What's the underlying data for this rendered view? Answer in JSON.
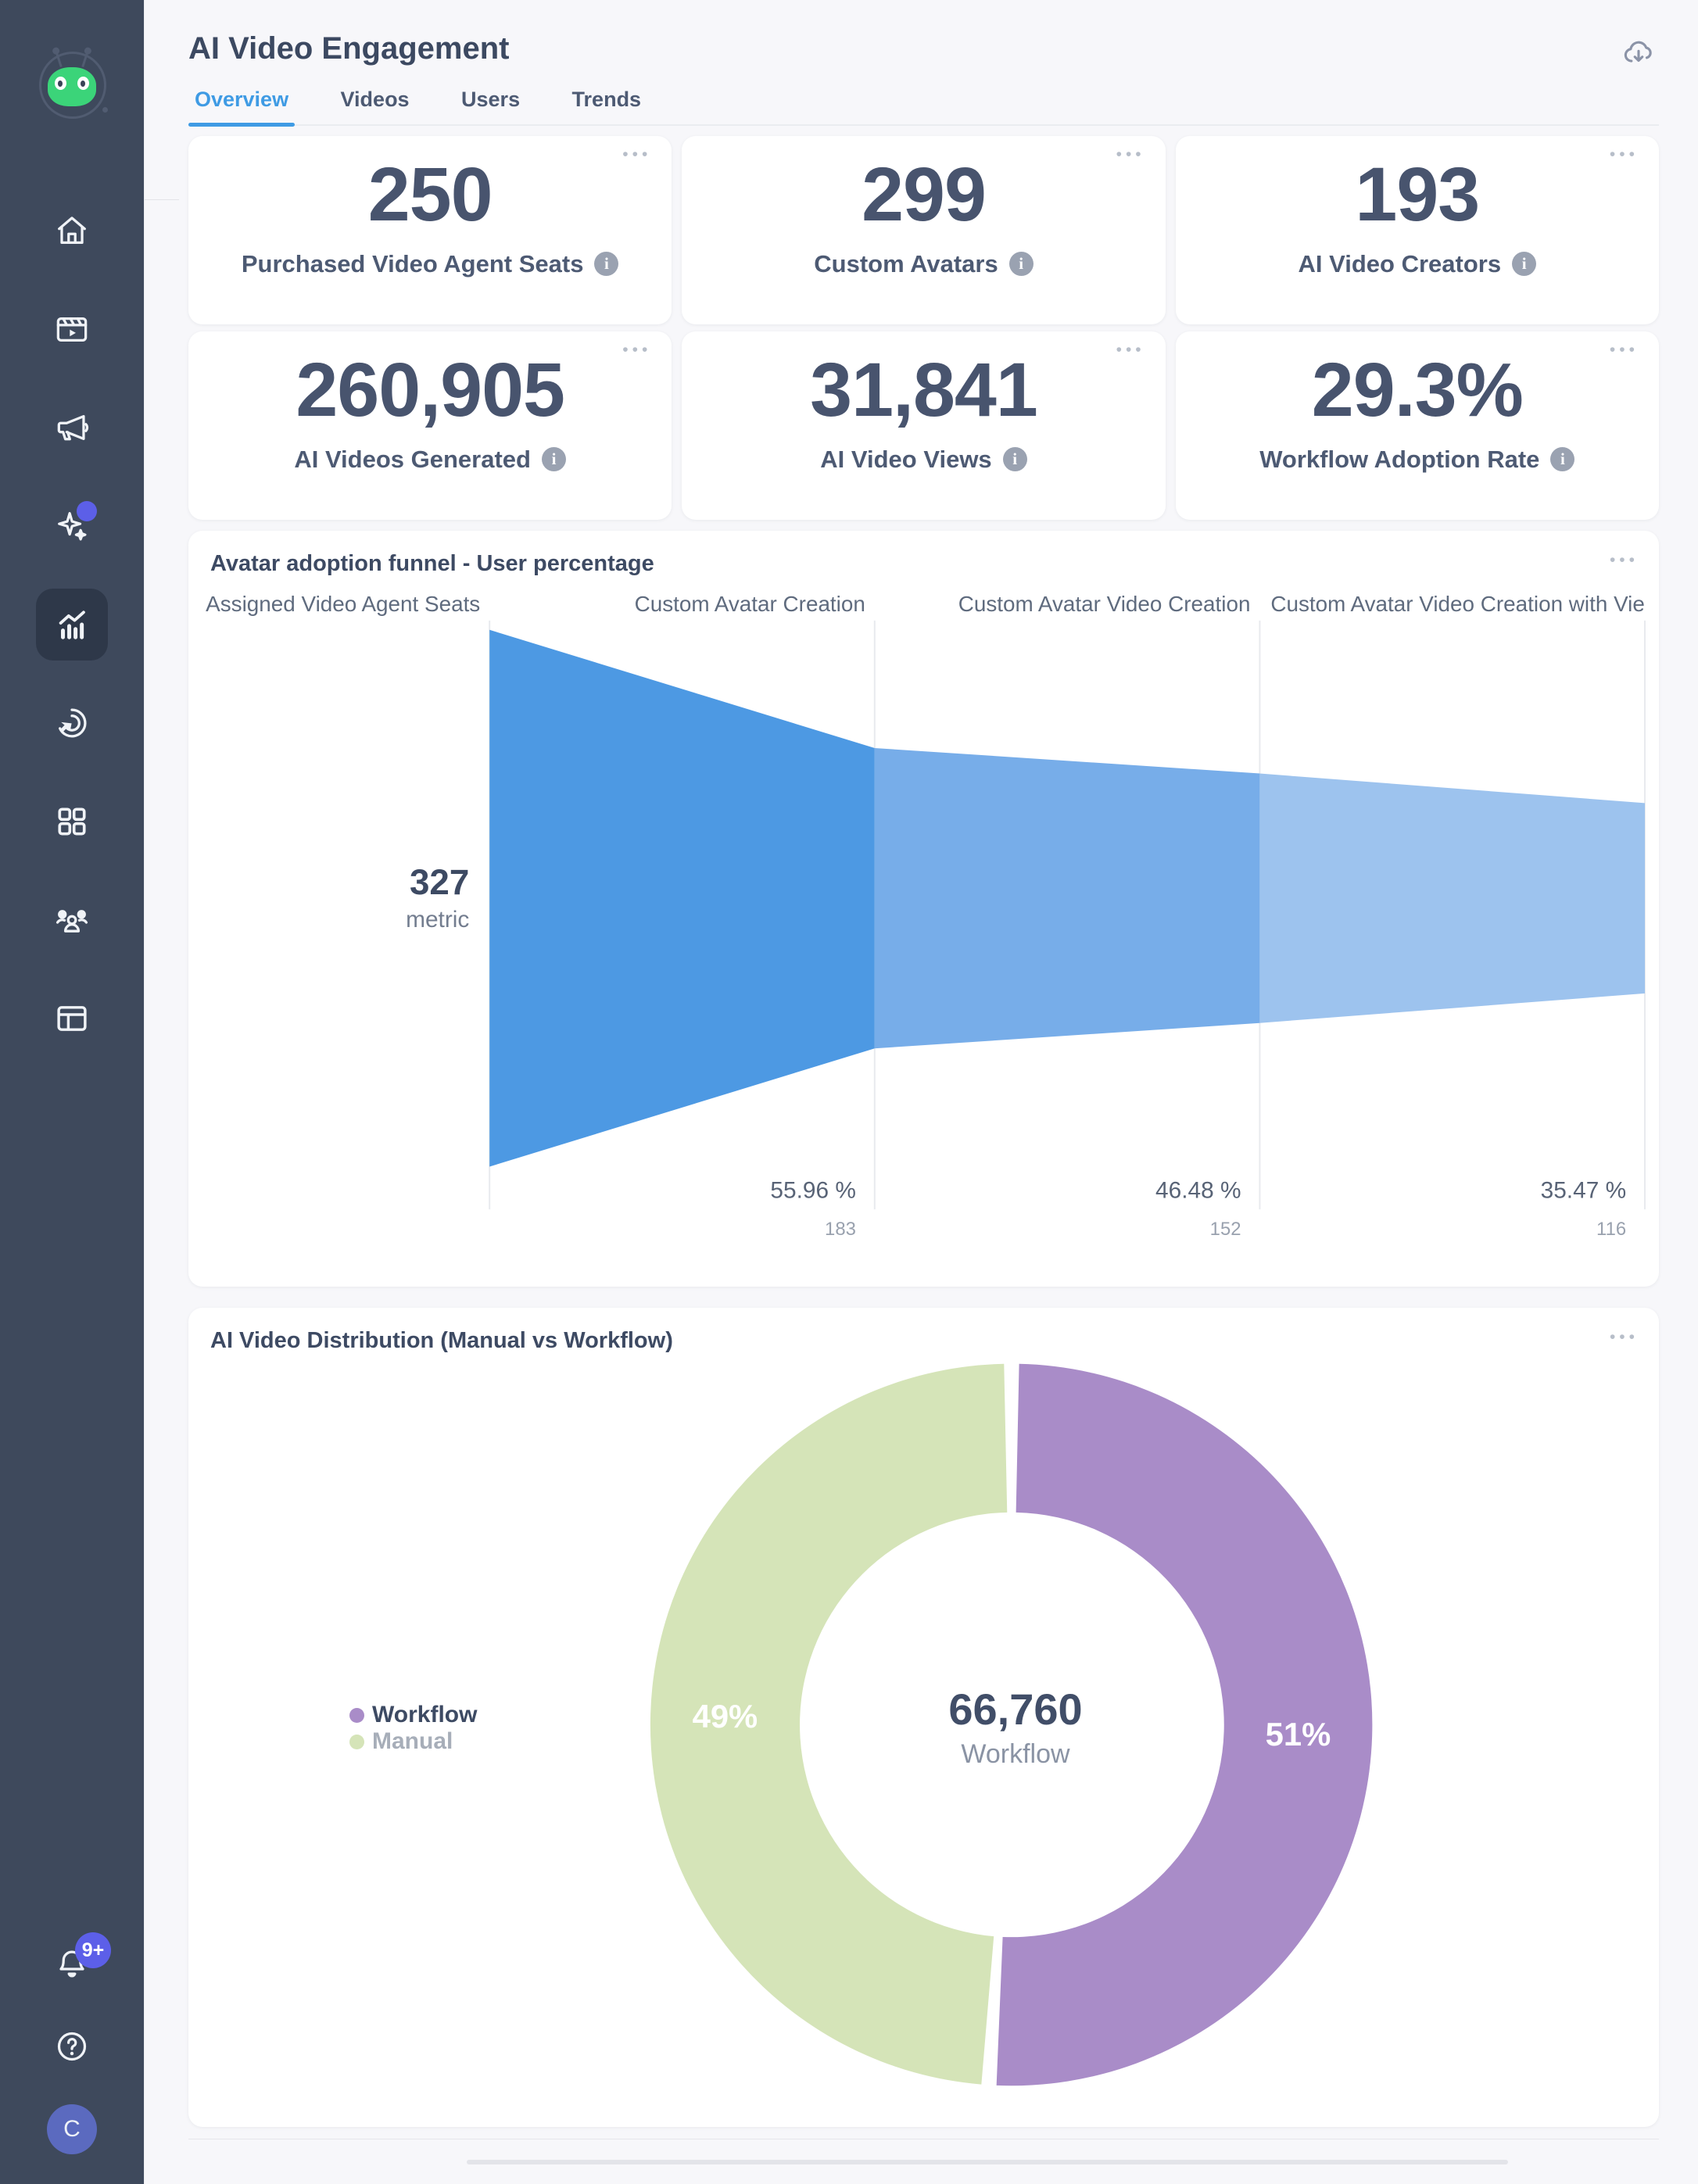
{
  "sidebar": {
    "items": [
      {
        "name": "home"
      },
      {
        "name": "videos"
      },
      {
        "name": "campaigns"
      },
      {
        "name": "ai-assistant"
      },
      {
        "name": "analytics",
        "active": true
      },
      {
        "name": "goals"
      },
      {
        "name": "apps"
      },
      {
        "name": "audience"
      },
      {
        "name": "pages"
      }
    ],
    "notification_badge": "9+",
    "avatar_initial": "C"
  },
  "header": {
    "title": "AI Video Engagement"
  },
  "tabs": {
    "items": [
      "Overview",
      "Videos",
      "Users",
      "Trends"
    ],
    "active": "Overview"
  },
  "kpi": {
    "cards": [
      {
        "value": "250",
        "label": "Purchased Video Agent Seats"
      },
      {
        "value": "299",
        "label": "Custom Avatars"
      },
      {
        "value": "193",
        "label": "AI Video Creators"
      },
      {
        "value": "260,905",
        "label": "AI Videos Generated"
      },
      {
        "value": "31,841",
        "label": "AI Video Views"
      },
      {
        "value": "29.3%",
        "label": "Workflow Adoption Rate"
      }
    ]
  },
  "funnel_panel": {
    "title": "Avatar adoption funnel - User percentage"
  },
  "donut_panel": {
    "title": "AI Video Distribution (Manual vs Workflow)"
  },
  "chart_data": [
    {
      "type": "funnel",
      "title": "Avatar adoption funnel - User percentage",
      "start": {
        "value": "327",
        "unit": "metric"
      },
      "stages": [
        {
          "label": "Assigned Video Agent Seats",
          "percent": 100,
          "count": 327
        },
        {
          "label": "Custom Avatar Creation",
          "percent": 55.96,
          "count": 183
        },
        {
          "label": "Custom Avatar Video Creation",
          "percent": 46.48,
          "count": 152
        },
        {
          "label": "Custom Avatar Video Creation with Vie...",
          "percent": 35.47,
          "count": 116
        }
      ],
      "colors": [
        "#4d99e3",
        "#77ade9",
        "#9dc3ee"
      ],
      "divider_color": "#e8eaee"
    },
    {
      "type": "donut",
      "title": "AI Video Distribution (Manual vs Workflow)",
      "center": {
        "value": "66,760",
        "label": "Workflow"
      },
      "slices": [
        {
          "name": "Workflow",
          "percent": 51,
          "color": "#a98cc8",
          "label_color": "#3d4a63"
        },
        {
          "name": "Manual",
          "percent": 49,
          "color": "#d5e4b8",
          "label_color": "#a7aeb9"
        }
      ],
      "legend_position": "left"
    }
  ]
}
